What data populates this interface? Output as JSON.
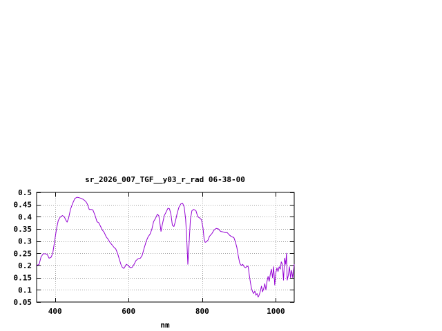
{
  "chart_data": {
    "type": "line",
    "title": "sr_2026_007_TGF__y03_r_rad 06-38-00",
    "xlabel": "nm",
    "ylabel": "",
    "xlim": [
      350,
      1050
    ],
    "ylim": [
      0.05,
      0.5
    ],
    "x_ticks": [
      400,
      600,
      800,
      1000
    ],
    "x_tick_labels": [
      "400",
      "600",
      "800",
      "1000"
    ],
    "y_ticks": [
      0.05,
      0.1,
      0.15,
      0.2,
      0.25,
      0.3,
      0.35,
      0.4,
      0.45,
      0.5
    ],
    "y_tick_labels": [
      "0.05",
      "0.1",
      "0.15",
      "0.2",
      "0.25",
      "0.3",
      "0.35",
      "0.4",
      "0.45",
      "0.5"
    ],
    "grid": true,
    "series": [
      {
        "color": "#9400d3",
        "points": [
          [
            350,
            0.2
          ],
          [
            357,
            0.205
          ],
          [
            362,
            0.235
          ],
          [
            368,
            0.248
          ],
          [
            374,
            0.248
          ],
          [
            379,
            0.245
          ],
          [
            384,
            0.23
          ],
          [
            389,
            0.233
          ],
          [
            394,
            0.25
          ],
          [
            399,
            0.3
          ],
          [
            404,
            0.35
          ],
          [
            409,
            0.385
          ],
          [
            414,
            0.398
          ],
          [
            420,
            0.405
          ],
          [
            425,
            0.4
          ],
          [
            430,
            0.385
          ],
          [
            433,
            0.378
          ],
          [
            437,
            0.395
          ],
          [
            442,
            0.43
          ],
          [
            448,
            0.455
          ],
          [
            454,
            0.475
          ],
          [
            460,
            0.48
          ],
          [
            466,
            0.478
          ],
          [
            472,
            0.475
          ],
          [
            478,
            0.47
          ],
          [
            484,
            0.462
          ],
          [
            488,
            0.452
          ],
          [
            493,
            0.43
          ],
          [
            498,
            0.43
          ],
          [
            503,
            0.428
          ],
          [
            509,
            0.405
          ],
          [
            514,
            0.38
          ],
          [
            519,
            0.375
          ],
          [
            524,
            0.36
          ],
          [
            529,
            0.345
          ],
          [
            534,
            0.335
          ],
          [
            539,
            0.318
          ],
          [
            544,
            0.308
          ],
          [
            550,
            0.293
          ],
          [
            555,
            0.285
          ],
          [
            560,
            0.275
          ],
          [
            565,
            0.268
          ],
          [
            570,
            0.25
          ],
          [
            575,
            0.225
          ],
          [
            579,
            0.205
          ],
          [
            583,
            0.192
          ],
          [
            587,
            0.188
          ],
          [
            590,
            0.195
          ],
          [
            594,
            0.205
          ],
          [
            599,
            0.2
          ],
          [
            605,
            0.19
          ],
          [
            610,
            0.193
          ],
          [
            615,
            0.205
          ],
          [
            620,
            0.22
          ],
          [
            626,
            0.228
          ],
          [
            632,
            0.23
          ],
          [
            637,
            0.242
          ],
          [
            642,
            0.27
          ],
          [
            648,
            0.3
          ],
          [
            653,
            0.318
          ],
          [
            658,
            0.328
          ],
          [
            663,
            0.348
          ],
          [
            668,
            0.38
          ],
          [
            673,
            0.393
          ],
          [
            678,
            0.41
          ],
          [
            682,
            0.405
          ],
          [
            685,
            0.375
          ],
          [
            688,
            0.34
          ],
          [
            692,
            0.37
          ],
          [
            697,
            0.405
          ],
          [
            702,
            0.42
          ],
          [
            707,
            0.435
          ],
          [
            711,
            0.433
          ],
          [
            715,
            0.41
          ],
          [
            719,
            0.365
          ],
          [
            723,
            0.36
          ],
          [
            727,
            0.38
          ],
          [
            732,
            0.415
          ],
          [
            737,
            0.44
          ],
          [
            742,
            0.453
          ],
          [
            747,
            0.455
          ],
          [
            751,
            0.44
          ],
          [
            755,
            0.39
          ],
          [
            758,
            0.31
          ],
          [
            761,
            0.205
          ],
          [
            764,
            0.28
          ],
          [
            768,
            0.39
          ],
          [
            772,
            0.425
          ],
          [
            777,
            0.43
          ],
          [
            783,
            0.425
          ],
          [
            788,
            0.4
          ],
          [
            793,
            0.395
          ],
          [
            798,
            0.388
          ],
          [
            802,
            0.355
          ],
          [
            805,
            0.31
          ],
          [
            808,
            0.295
          ],
          [
            812,
            0.298
          ],
          [
            816,
            0.305
          ],
          [
            820,
            0.32
          ],
          [
            826,
            0.33
          ],
          [
            832,
            0.345
          ],
          [
            838,
            0.352
          ],
          [
            844,
            0.35
          ],
          [
            850,
            0.34
          ],
          [
            856,
            0.338
          ],
          [
            862,
            0.335
          ],
          [
            868,
            0.335
          ],
          [
            874,
            0.325
          ],
          [
            880,
            0.318
          ],
          [
            886,
            0.315
          ],
          [
            890,
            0.298
          ],
          [
            894,
            0.275
          ],
          [
            898,
            0.24
          ],
          [
            902,
            0.21
          ],
          [
            906,
            0.2
          ],
          [
            910,
            0.205
          ],
          [
            914,
            0.195
          ],
          [
            918,
            0.19
          ],
          [
            922,
            0.198
          ],
          [
            925,
            0.195
          ],
          [
            928,
            0.16
          ],
          [
            931,
            0.13
          ],
          [
            934,
            0.105
          ],
          [
            937,
            0.092
          ],
          [
            940,
            0.085
          ],
          [
            943,
            0.095
          ],
          [
            946,
            0.078
          ],
          [
            949,
            0.085
          ],
          [
            952,
            0.07
          ],
          [
            955,
            0.08
          ],
          [
            958,
            0.095
          ],
          [
            961,
            0.115
          ],
          [
            964,
            0.092
          ],
          [
            967,
            0.105
          ],
          [
            970,
            0.125
          ],
          [
            973,
            0.1
          ],
          [
            976,
            0.135
          ],
          [
            979,
            0.155
          ],
          [
            982,
            0.135
          ],
          [
            985,
            0.165
          ],
          [
            988,
            0.185
          ],
          [
            991,
            0.15
          ],
          [
            994,
            0.195
          ],
          [
            997,
            0.12
          ],
          [
            1000,
            0.17
          ],
          [
            1003,
            0.19
          ],
          [
            1006,
            0.175
          ],
          [
            1009,
            0.195
          ],
          [
            1012,
            0.185
          ],
          [
            1015,
            0.215
          ],
          [
            1018,
            0.205
          ],
          [
            1021,
            0.14
          ],
          [
            1024,
            0.23
          ],
          [
            1027,
            0.205
          ],
          [
            1029,
            0.25
          ],
          [
            1031,
            0.14
          ],
          [
            1034,
            0.16
          ],
          [
            1037,
            0.195
          ],
          [
            1040,
            0.15
          ],
          [
            1043,
            0.18
          ],
          [
            1046,
            0.15
          ],
          [
            1050,
            0.205
          ]
        ]
      }
    ]
  }
}
